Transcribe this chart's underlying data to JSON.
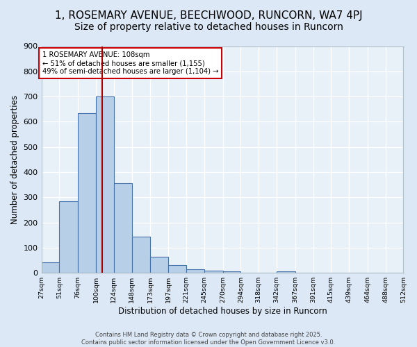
{
  "title1": "1, ROSEMARY AVENUE, BEECHWOOD, RUNCORN, WA7 4PJ",
  "title2": "Size of property relative to detached houses in Runcorn",
  "xlabel": "Distribution of detached houses by size in Runcorn",
  "ylabel": "Number of detached properties",
  "bar_values": [
    42,
    283,
    633,
    700,
    355,
    143,
    63,
    30,
    15,
    10,
    5,
    0,
    0,
    7,
    0,
    0,
    0,
    0,
    0,
    0
  ],
  "bar_labels": [
    "27sqm",
    "51sqm",
    "76sqm",
    "100sqm",
    "124sqm",
    "148sqm",
    "173sqm",
    "197sqm",
    "221sqm",
    "245sqm",
    "270sqm",
    "294sqm",
    "318sqm",
    "342sqm",
    "367sqm",
    "391sqm",
    "415sqm",
    "439sqm",
    "464sqm",
    "488sqm",
    "512sqm"
  ],
  "bar_color": "#b8cfe8",
  "bar_edgecolor": "#4472a8",
  "vline_x": 108,
  "vline_color": "#aa0000",
  "annotation_text": "1 ROSEMARY AVENUE: 108sqm\n← 51% of detached houses are smaller (1,155)\n49% of semi-detached houses are larger (1,104) →",
  "annotation_box_color": "#ffffff",
  "annotation_box_edgecolor": "#cc0000",
  "ylim": [
    0,
    900
  ],
  "yticks": [
    0,
    100,
    200,
    300,
    400,
    500,
    600,
    700,
    800,
    900
  ],
  "footer_text": "Contains HM Land Registry data © Crown copyright and database right 2025.\nContains public sector information licensed under the Open Government Licence v3.0.",
  "bg_color": "#dce8f5",
  "plot_bg_color": "#e8f0f8",
  "grid_color": "#ffffff",
  "title_fontsize": 11,
  "subtitle_fontsize": 10,
  "bin_edges": [
    27,
    51,
    76,
    100,
    124,
    148,
    173,
    197,
    221,
    245,
    270,
    294,
    318,
    342,
    367,
    391,
    415,
    439,
    464,
    488,
    512
  ]
}
